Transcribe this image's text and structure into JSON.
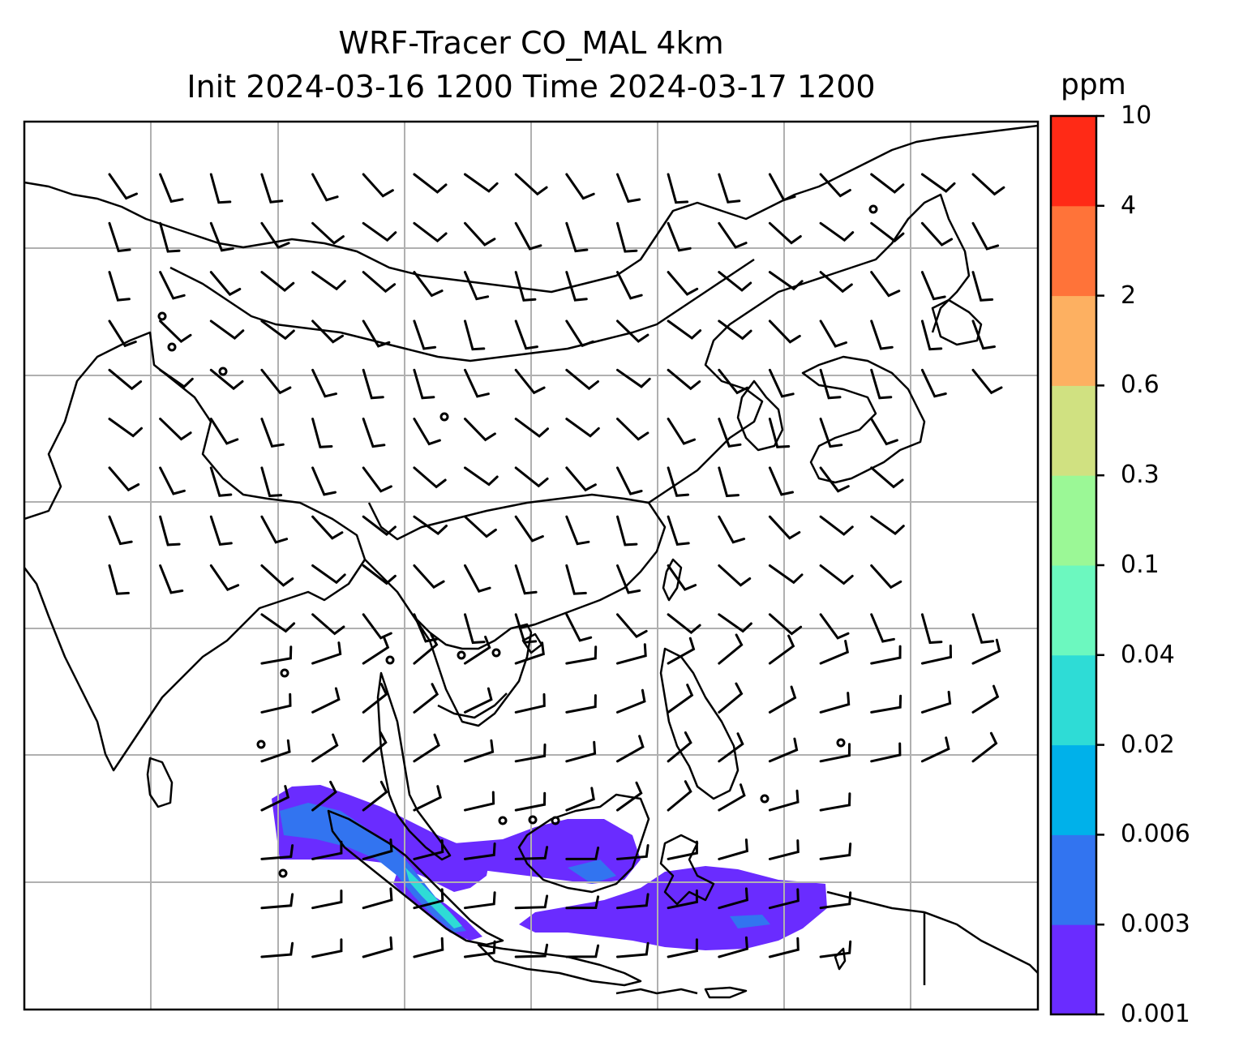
{
  "title": {
    "line1": "WRF-Tracer CO_MAL 4km",
    "line2": "Init 2024-03-16 1200 Time 2024-03-17 1200"
  },
  "colorbar": {
    "unit": "ppm",
    "levels": [
      "0.001",
      "0.003",
      "0.006",
      "0.02",
      "0.04",
      "0.1",
      "0.3",
      "0.6",
      "2",
      "4",
      "10"
    ],
    "colors": [
      "#6a2cff",
      "#3274f0",
      "#00b1ea",
      "#2edcd6",
      "#6cf8bf",
      "#9bf896",
      "#d0e181",
      "#fdb061",
      "#ff7339",
      "#ff2a16"
    ]
  },
  "map": {
    "gridlines": true,
    "plume_color_main": "#6a2cff",
    "plume_color_mid": "#3274f0",
    "plume_color_high": "#2edcd6"
  }
}
